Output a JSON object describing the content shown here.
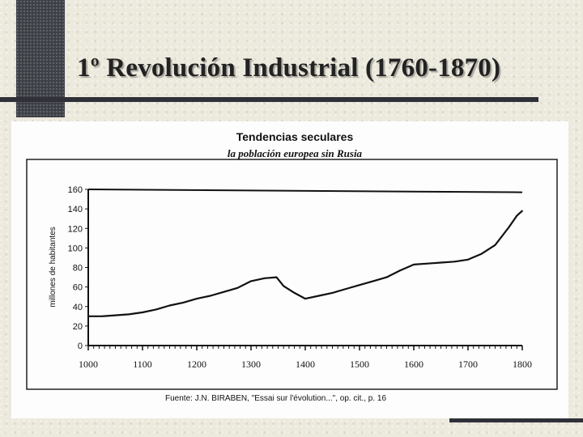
{
  "slide": {
    "title": "1º Revolución Industrial (1760-1870)"
  },
  "chart_data": {
    "type": "line",
    "title": "Tendencias seculares",
    "subtitle": "la población europea sin Rusia",
    "xlabel": "",
    "ylabel": "millones de habitantes",
    "source": "Fuente: J.N. BIRABEN, \"Essai sur l'évolution...\", op. cit., p. 16",
    "xlim": [
      1000,
      1800
    ],
    "ylim": [
      0,
      160
    ],
    "xticks": [
      1000,
      1100,
      1200,
      1300,
      1400,
      1500,
      1600,
      1700,
      1800
    ],
    "yticks": [
      0,
      20,
      40,
      60,
      80,
      100,
      120,
      140,
      160
    ],
    "grid": false,
    "line_color": "#111111",
    "series": [
      {
        "x": [
          1000,
          1025,
          1050,
          1075,
          1100,
          1125,
          1150,
          1175,
          1200,
          1225,
          1250,
          1275,
          1300,
          1325,
          1347,
          1360,
          1380,
          1400,
          1425,
          1450,
          1475,
          1500,
          1525,
          1550,
          1575,
          1600,
          1625,
          1650,
          1675,
          1700,
          1725,
          1750,
          1775,
          1790,
          1800
        ],
        "y": [
          30,
          30,
          31,
          32,
          34,
          37,
          41,
          44,
          48,
          51,
          55,
          59,
          66,
          69,
          70,
          61,
          54,
          48,
          51,
          54,
          58,
          62,
          66,
          70,
          77,
          83,
          84,
          85,
          86,
          88,
          94,
          103,
          121,
          133,
          138
        ]
      }
    ]
  }
}
